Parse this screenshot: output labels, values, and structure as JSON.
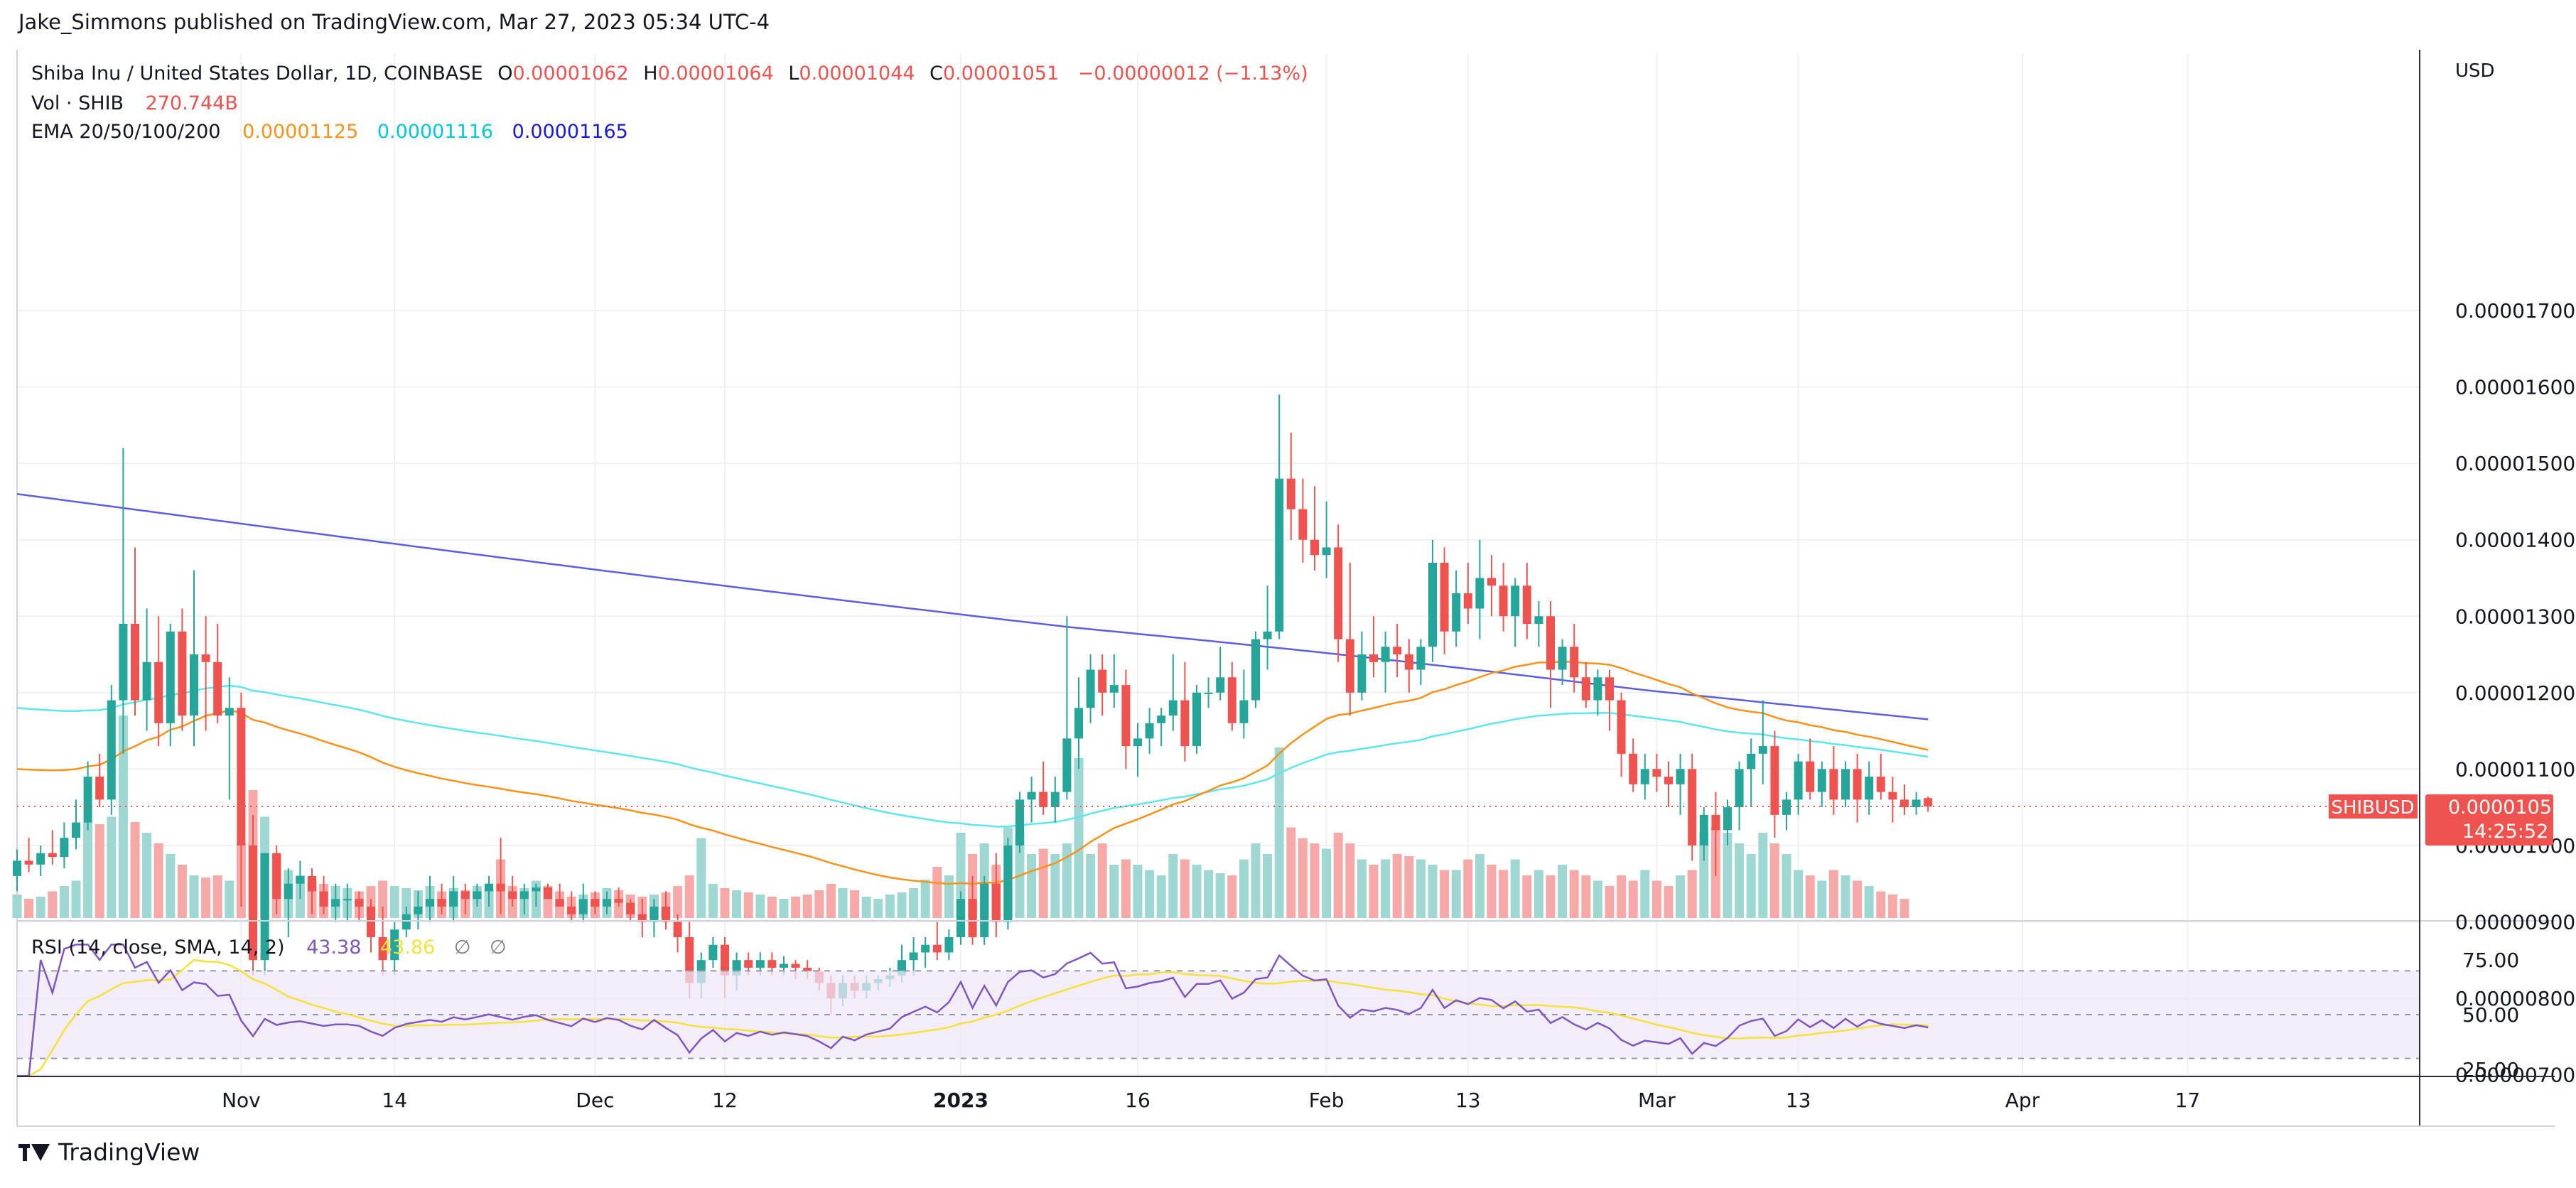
{
  "publish_line": "Jake_Simmons published on TradingView.com, Mar 27, 2023 05:34 UTC-4",
  "legend": {
    "symbol": "Shiba Inu / United States Dollar, 1D, COINBASE",
    "o_label": "O",
    "o": "0.00001062",
    "h_label": "H",
    "h": "0.00001064",
    "l_label": "L",
    "l": "0.00001044",
    "c_label": "C",
    "c": "0.00001051",
    "change": "−0.00000012 (−1.13%)",
    "vol_label": "Vol · SHIB",
    "vol": "270.744B",
    "ema_label": "EMA 20/50/100/200",
    "ema20": "0.00001125",
    "ema50": "0.00001116",
    "ema200": "0.00001165",
    "rsi_label": "RSI (14, close, SMA, 14, 2)",
    "rsi": "43.38",
    "rsi_sma": "43.86",
    "rsi_extra1": "∅",
    "rsi_extra2": "∅"
  },
  "footer": {
    "brand": "TradingView"
  },
  "colors": {
    "up": "#26a69a",
    "down": "#ef5350",
    "up_vol": "#9fd7d2",
    "down_vol": "#f7a9a7",
    "ema20": "#f7931a",
    "ema50": "#5ee6ef",
    "ema200": "#5b5fe0",
    "rsi": "#7e57c2",
    "rsi_sma": "#f5e23b"
  },
  "chart_data": {
    "type": "candlestick",
    "price_axis": {
      "title": "USD",
      "ticks": [
        7e-06,
        8e-06,
        9e-06,
        1e-05,
        1.1e-05,
        1.2e-05,
        1.3e-05,
        1.4e-05,
        1.5e-05,
        1.6e-05,
        1.7e-05
      ],
      "tick_labels": [
        "0.00000700",
        "0.00000800",
        "0.00000900",
        "0.00001000",
        "0.00001100",
        "0.00001200",
        "0.00001300",
        "0.00001400",
        "0.00001500",
        "0.00001600",
        "0.00001700"
      ]
    },
    "time_axis": {
      "ticks": [
        {
          "label": "Nov",
          "bar": 19
        },
        {
          "label": "14",
          "bar": 32
        },
        {
          "label": "Dec",
          "bar": 49
        },
        {
          "label": "12",
          "bar": 60
        },
        {
          "label": "2023",
          "bar": 80,
          "bold": true
        },
        {
          "label": "16",
          "bar": 95
        },
        {
          "label": "Feb",
          "bar": 111
        },
        {
          "label": "13",
          "bar": 123
        },
        {
          "label": "Mar",
          "bar": 139
        },
        {
          "label": "13",
          "bar": 151
        },
        {
          "label": "Apr",
          "bar": 170
        },
        {
          "label": "17",
          "bar": 184
        }
      ]
    },
    "last_price": {
      "symbol": "SHIBUSD",
      "value": "0.00001051",
      "countdown": "14:25:52"
    },
    "ohlc": [
      [
        9.6e-06,
        9.95e-06,
        9.4e-06,
        9.8e-06
      ],
      [
        9.8e-06,
        1.01e-05,
        9.65e-06,
        9.75e-06
      ],
      [
        9.75e-06,
        1e-05,
        9.6e-06,
        9.9e-06
      ],
      [
        9.9e-06,
        1.02e-05,
        9.75e-06,
        9.85e-06
      ],
      [
        9.85e-06,
        1.03e-05,
        9.7e-06,
        1.01e-05
      ],
      [
        1.01e-05,
        1.06e-05,
        9.95e-06,
        1.03e-05
      ],
      [
        1.03e-05,
        1.11e-05,
        1.02e-05,
        1.09e-05
      ],
      [
        1.09e-05,
        1.12e-05,
        1.05e-05,
        1.06e-05
      ],
      [
        1.06e-05,
        1.21e-05,
        1.04e-05,
        1.19e-05
      ],
      [
        1.19e-05,
        1.52e-05,
        1.12e-05,
        1.29e-05
      ],
      [
        1.29e-05,
        1.39e-05,
        1.17e-05,
        1.19e-05
      ],
      [
        1.19e-05,
        1.31e-05,
        1.15e-05,
        1.24e-05
      ],
      [
        1.24e-05,
        1.3e-05,
        1.13e-05,
        1.16e-05
      ],
      [
        1.16e-05,
        1.29e-05,
        1.13e-05,
        1.28e-05
      ],
      [
        1.28e-05,
        1.31e-05,
        1.15e-05,
        1.17e-05
      ],
      [
        1.17e-05,
        1.36e-05,
        1.13e-05,
        1.25e-05
      ],
      [
        1.25e-05,
        1.3e-05,
        1.15e-05,
        1.24e-05
      ],
      [
        1.24e-05,
        1.29e-05,
        1.16e-05,
        1.17e-05
      ],
      [
        1.17e-05,
        1.22e-05,
        1.06e-05,
        1.18e-05
      ],
      [
        1.18e-05,
        1.2e-05,
        9.2e-06,
        1e-05
      ],
      [
        1e-05,
        1.04e-05,
        8.3e-06,
        8.5e-06
      ],
      [
        8.5e-06,
        9.9e-06,
        8.3e-06,
        9.9e-06
      ],
      [
        9.9e-06,
        1e-05,
        9.1e-06,
        9.3e-06
      ],
      [
        9.3e-06,
        9.7e-06,
        8.8e-06,
        9.5e-06
      ],
      [
        9.5e-06,
        9.8e-06,
        9.3e-06,
        9.6e-06
      ],
      [
        9.6e-06,
        9.7e-06,
        9.1e-06,
        9.4e-06
      ],
      [
        9.4e-06,
        9.6e-06,
        9.1e-06,
        9.2e-06
      ],
      [
        9.2e-06,
        9.5e-06,
        9e-06,
        9.3e-06
      ],
      [
        9.3e-06,
        9.5e-06,
        9e-06,
        9.3e-06
      ],
      [
        9.3e-06,
        9.4e-06,
        9e-06,
        9.2e-06
      ],
      [
        9.2e-06,
        9.3e-06,
        8.6e-06,
        8.8e-06
      ],
      [
        8.8e-06,
        9.2e-06,
        8.3e-06,
        8.5e-06
      ],
      [
        8.5e-06,
        9e-06,
        8.3e-06,
        8.9e-06
      ],
      [
        8.9e-06,
        9.2e-06,
        8.8e-06,
        9.1e-06
      ],
      [
        9.1e-06,
        9.4e-06,
        8.9e-06,
        9.2e-06
      ],
      [
        9.2e-06,
        9.6e-06,
        9e-06,
        9.3e-06
      ],
      [
        9.3e-06,
        9.5e-06,
        9.1e-06,
        9.2e-06
      ],
      [
        9.2e-06,
        9.6e-06,
        9e-06,
        9.4e-06
      ],
      [
        9.4e-06,
        9.5e-06,
        9.1e-06,
        9.3e-06
      ],
      [
        9.3e-06,
        9.5e-06,
        9.2e-06,
        9.4e-06
      ],
      [
        9.4e-06,
        9.6e-06,
        9.2e-06,
        9.5e-06
      ],
      [
        9.5e-06,
        1.01e-05,
        9.1e-06,
        9.4e-06
      ],
      [
        9.4e-06,
        9.6e-06,
        9.2e-06,
        9.3e-06
      ],
      [
        9.3e-06,
        9.5e-06,
        9.1e-06,
        9.4e-06
      ],
      [
        9.4e-06,
        9.5e-06,
        9.2e-06,
        9.45e-06
      ],
      [
        9.45e-06,
        9.5e-06,
        9.3e-06,
        9.3e-06
      ],
      [
        9.3e-06,
        9.5e-06,
        9.2e-06,
        9.2e-06
      ],
      [
        9.2e-06,
        9.4e-06,
        9e-06,
        9.1e-06
      ],
      [
        9.1e-06,
        9.5e-06,
        9e-06,
        9.3e-06
      ],
      [
        9.3e-06,
        9.4e-06,
        9.1e-06,
        9.2e-06
      ],
      [
        9.2e-06,
        9.4e-06,
        9.1e-06,
        9.3e-06
      ],
      [
        9.3e-06,
        9.45e-06,
        9.2e-06,
        9.25e-06
      ],
      [
        9.25e-06,
        9.3e-06,
        9e-06,
        9.1e-06
      ],
      [
        9.1e-06,
        9.3e-06,
        8.8e-06,
        9e-06
      ],
      [
        9e-06,
        9.3e-06,
        8.8e-06,
        9.2e-06
      ],
      [
        9.2e-06,
        9.4e-06,
        8.9e-06,
        9e-06
      ],
      [
        9e-06,
        9.1e-06,
        8.6e-06,
        8.8e-06
      ],
      [
        8.8e-06,
        9e-06,
        8e-06,
        8.2e-06
      ],
      [
        8.2e-06,
        8.6e-06,
        8e-06,
        8.5e-06
      ],
      [
        8.5e-06,
        8.8e-06,
        8.4e-06,
        8.7e-06
      ],
      [
        8.7e-06,
        8.8e-06,
        8e-06,
        8.3e-06
      ],
      [
        8.3e-06,
        8.6e-06,
        8.1e-06,
        8.5e-06
      ],
      [
        8.5e-06,
        8.6e-06,
        8.3e-06,
        8.4e-06
      ],
      [
        8.4e-06,
        8.6e-06,
        8.3e-06,
        8.5e-06
      ],
      [
        8.5e-06,
        8.6e-06,
        8.3e-06,
        8.4e-06
      ],
      [
        8.4e-06,
        8.55e-06,
        8.3e-06,
        8.45e-06
      ],
      [
        8.45e-06,
        8.5e-06,
        8.25e-06,
        8.4e-06
      ],
      [
        8.4e-06,
        8.5e-06,
        8.25e-06,
        8.35e-06
      ],
      [
        8.35e-06,
        8.4e-06,
        8.1e-06,
        8.2e-06
      ],
      [
        8.2e-06,
        8.3e-06,
        7.8e-06,
        8e-06
      ],
      [
        8e-06,
        8.3e-06,
        7.9e-06,
        8.2e-06
      ],
      [
        8.2e-06,
        8.3e-06,
        8e-06,
        8.1e-06
      ],
      [
        8.1e-06,
        8.3e-06,
        8e-06,
        8.2e-06
      ],
      [
        8.2e-06,
        8.3e-06,
        8.1e-06,
        8.25e-06
      ],
      [
        8.25e-06,
        8.4e-06,
        8.15e-06,
        8.3e-06
      ],
      [
        8.3e-06,
        8.7e-06,
        8.2e-06,
        8.5e-06
      ],
      [
        8.5e-06,
        8.8e-06,
        8.3e-06,
        8.6e-06
      ],
      [
        8.6e-06,
        8.8e-06,
        8.4e-06,
        8.7e-06
      ],
      [
        8.7e-06,
        9e-06,
        8.5e-06,
        8.6e-06
      ],
      [
        8.6e-06,
        8.9e-06,
        8.5e-06,
        8.8e-06
      ],
      [
        8.8e-06,
        9.4e-06,
        8.7e-06,
        9.3e-06
      ],
      [
        9.3e-06,
        9.6e-06,
        8.7e-06,
        8.8e-06
      ],
      [
        8.8e-06,
        9.6e-06,
        8.7e-06,
        9.5e-06
      ],
      [
        9.5e-06,
        9.9e-06,
        8.8e-06,
        9e-06
      ],
      [
        9e-06,
        1.01e-05,
        8.9e-06,
        1e-05
      ],
      [
        1e-05,
        1.07e-05,
        9.9e-06,
        1.06e-05
      ],
      [
        1.06e-05,
        1.09e-05,
        1.03e-05,
        1.07e-05
      ],
      [
        1.07e-05,
        1.11e-05,
        1.04e-05,
        1.05e-05
      ],
      [
        1.05e-05,
        1.09e-05,
        1.03e-05,
        1.07e-05
      ],
      [
        1.07e-05,
        1.3e-05,
        1.06e-05,
        1.14e-05
      ],
      [
        1.14e-05,
        1.22e-05,
        1.1e-05,
        1.18e-05
      ],
      [
        1.18e-05,
        1.25e-05,
        1.16e-05,
        1.23e-05
      ],
      [
        1.23e-05,
        1.25e-05,
        1.17e-05,
        1.2e-05
      ],
      [
        1.2e-05,
        1.25e-05,
        1.18e-05,
        1.21e-05
      ],
      [
        1.21e-05,
        1.23e-05,
        1.1e-05,
        1.13e-05
      ],
      [
        1.13e-05,
        1.16e-05,
        1.09e-05,
        1.14e-05
      ],
      [
        1.14e-05,
        1.18e-05,
        1.12e-05,
        1.16e-05
      ],
      [
        1.16e-05,
        1.18e-05,
        1.13e-05,
        1.17e-05
      ],
      [
        1.17e-05,
        1.25e-05,
        1.15e-05,
        1.19e-05
      ],
      [
        1.19e-05,
        1.24e-05,
        1.11e-05,
        1.13e-05
      ],
      [
        1.13e-05,
        1.21e-05,
        1.12e-05,
        1.2e-05
      ],
      [
        1.2e-05,
        1.22e-05,
        1.18e-05,
        1.2e-05
      ],
      [
        1.2e-05,
        1.26e-05,
        1.19e-05,
        1.22e-05
      ],
      [
        1.22e-05,
        1.24e-05,
        1.15e-05,
        1.16e-05
      ],
      [
        1.16e-05,
        1.23e-05,
        1.14e-05,
        1.19e-05
      ],
      [
        1.19e-05,
        1.28e-05,
        1.18e-05,
        1.27e-05
      ],
      [
        1.27e-05,
        1.34e-05,
        1.23e-05,
        1.28e-05
      ],
      [
        1.28e-05,
        1.59e-05,
        1.27e-05,
        1.48e-05
      ],
      [
        1.48e-05,
        1.54e-05,
        1.4e-05,
        1.44e-05
      ],
      [
        1.44e-05,
        1.48e-05,
        1.37e-05,
        1.4e-05
      ],
      [
        1.4e-05,
        1.47e-05,
        1.36e-05,
        1.38e-05
      ],
      [
        1.38e-05,
        1.45e-05,
        1.35e-05,
        1.39e-05
      ],
      [
        1.39e-05,
        1.42e-05,
        1.24e-05,
        1.27e-05
      ],
      [
        1.27e-05,
        1.37e-05,
        1.17e-05,
        1.2e-05
      ],
      [
        1.2e-05,
        1.28e-05,
        1.19e-05,
        1.25e-05
      ],
      [
        1.25e-05,
        1.3e-05,
        1.22e-05,
        1.24e-05
      ],
      [
        1.24e-05,
        1.28e-05,
        1.2e-05,
        1.26e-05
      ],
      [
        1.26e-05,
        1.29e-05,
        1.22e-05,
        1.25e-05
      ],
      [
        1.25e-05,
        1.27e-05,
        1.2e-05,
        1.23e-05
      ],
      [
        1.23e-05,
        1.27e-05,
        1.21e-05,
        1.26e-05
      ],
      [
        1.26e-05,
        1.4e-05,
        1.24e-05,
        1.37e-05
      ],
      [
        1.37e-05,
        1.39e-05,
        1.25e-05,
        1.28e-05
      ],
      [
        1.28e-05,
        1.36e-05,
        1.26e-05,
        1.33e-05
      ],
      [
        1.33e-05,
        1.37e-05,
        1.29e-05,
        1.31e-05
      ],
      [
        1.31e-05,
        1.4e-05,
        1.27e-05,
        1.35e-05
      ],
      [
        1.35e-05,
        1.38e-05,
        1.3e-05,
        1.34e-05
      ],
      [
        1.34e-05,
        1.37e-05,
        1.28e-05,
        1.3e-05
      ],
      [
        1.3e-05,
        1.35e-05,
        1.26e-05,
        1.34e-05
      ],
      [
        1.34e-05,
        1.37e-05,
        1.27e-05,
        1.29e-05
      ],
      [
        1.29e-05,
        1.32e-05,
        1.26e-05,
        1.3e-05
      ],
      [
        1.3e-05,
        1.32e-05,
        1.18e-05,
        1.23e-05
      ],
      [
        1.23e-05,
        1.27e-05,
        1.21e-05,
        1.26e-05
      ],
      [
        1.26e-05,
        1.29e-05,
        1.2e-05,
        1.22e-05
      ],
      [
        1.22e-05,
        1.24e-05,
        1.18e-05,
        1.19e-05
      ],
      [
        1.19e-05,
        1.23e-05,
        1.17e-05,
        1.22e-05
      ],
      [
        1.22e-05,
        1.23e-05,
        1.15e-05,
        1.19e-05
      ],
      [
        1.19e-05,
        1.2e-05,
        1.09e-05,
        1.12e-05
      ],
      [
        1.12e-05,
        1.14e-05,
        1.07e-05,
        1.08e-05
      ],
      [
        1.08e-05,
        1.12e-05,
        1.06e-05,
        1.1e-05
      ],
      [
        1.1e-05,
        1.12e-05,
        1.07e-05,
        1.09e-05
      ],
      [
        1.09e-05,
        1.11e-05,
        1.05e-05,
        1.08e-05
      ],
      [
        1.08e-05,
        1.12e-05,
        1.04e-05,
        1.1e-05
      ],
      [
        1.1e-05,
        1.12e-05,
        9.8e-06,
        1e-05
      ],
      [
        1e-05,
        1.05e-05,
        9.8e-06,
        1.04e-05
      ],
      [
        1.04e-05,
        1.07e-05,
        9.6e-06,
        1.02e-05
      ],
      [
        1.02e-05,
        1.06e-05,
        1e-05,
        1.05e-05
      ],
      [
        1.05e-05,
        1.11e-05,
        1.02e-05,
        1.1e-05
      ],
      [
        1.1e-05,
        1.14e-05,
        1.05e-05,
        1.12e-05
      ],
      [
        1.12e-05,
        1.19e-05,
        1.08e-05,
        1.13e-05
      ],
      [
        1.13e-05,
        1.15e-05,
        1.01e-05,
        1.04e-05
      ],
      [
        1.04e-05,
        1.07e-05,
        1.02e-05,
        1.06e-05
      ],
      [
        1.06e-05,
        1.12e-05,
        1.04e-05,
        1.11e-05
      ],
      [
        1.11e-05,
        1.14e-05,
        1.06e-05,
        1.07e-05
      ],
      [
        1.07e-05,
        1.11e-05,
        1.05e-05,
        1.1e-05
      ],
      [
        1.1e-05,
        1.13e-05,
        1.04e-05,
        1.06e-05
      ],
      [
        1.06e-05,
        1.11e-05,
        1.05e-05,
        1.1e-05
      ],
      [
        1.1e-05,
        1.12e-05,
        1.03e-05,
        1.06e-05
      ],
      [
        1.06e-05,
        1.11e-05,
        1.04e-05,
        1.09e-05
      ],
      [
        1.09e-05,
        1.12e-05,
        1.06e-05,
        1.07e-05
      ],
      [
        1.07e-05,
        1.09e-05,
        1.03e-05,
        1.06e-05
      ],
      [
        1.06e-05,
        1.08e-05,
        1.04e-05,
        1.05e-05
      ],
      [
        1.05e-05,
        1.07e-05,
        1.04e-05,
        1.06e-05
      ],
      [
        1.062e-05,
        1.064e-05,
        1.044e-05,
        1.051e-05
      ]
    ],
    "volume": [
      22,
      18,
      20,
      25,
      30,
      35,
      90,
      88,
      95,
      190,
      90,
      80,
      70,
      60,
      50,
      40,
      38,
      40,
      35,
      70,
      120,
      95,
      60,
      45,
      40,
      35,
      32,
      30,
      28,
      25,
      30,
      35,
      30,
      28,
      26,
      30,
      25,
      28,
      26,
      30,
      28,
      55,
      30,
      28,
      35,
      30,
      25,
      20,
      22,
      24,
      28,
      26,
      22,
      20,
      22,
      24,
      30,
      40,
      75,
      32,
      28,
      26,
      24,
      22,
      20,
      18,
      20,
      22,
      26,
      32,
      28,
      26,
      20,
      18,
      22,
      24,
      28,
      36,
      48,
      40,
      80,
      60,
      70,
      50,
      85,
      80,
      60,
      65,
      60,
      70,
      150,
      60,
      70,
      50,
      55,
      50,
      45,
      40,
      60,
      55,
      50,
      45,
      42,
      40,
      55,
      70,
      60,
      160,
      85,
      75,
      70,
      65,
      80,
      70,
      55,
      50,
      55,
      60,
      58,
      55,
      50,
      45,
      45,
      55,
      60,
      50,
      45,
      55,
      40,
      45,
      40,
      50,
      45,
      40,
      35,
      30,
      40,
      35,
      45,
      35,
      30,
      40,
      45,
      80,
      85,
      80,
      70,
      60,
      80,
      70,
      60,
      45,
      40,
      35,
      45,
      40,
      35,
      30,
      25,
      22,
      18
    ],
    "ema20_range": [
      1.1e-05,
      1.125e-05
    ],
    "ema50_range": [
      1.18e-05,
      1.116e-05
    ],
    "ema200_range": [
      1.46e-05,
      1.165e-05
    ],
    "rsi_axis": {
      "ticks": [
        25,
        50,
        75
      ],
      "tick_labels": [
        "25.00",
        "50.00",
        "75.00"
      ],
      "band": [
        30,
        70
      ]
    }
  }
}
